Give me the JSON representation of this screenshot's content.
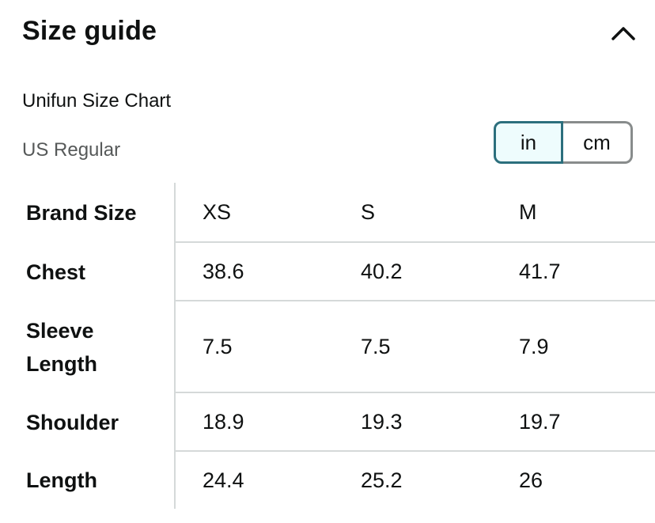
{
  "header": {
    "title": "Size guide"
  },
  "chart": {
    "name": "Unifun Size Chart",
    "fit": "US Regular"
  },
  "units": {
    "options": [
      "in",
      "cm"
    ],
    "selected": "in"
  },
  "table": {
    "header_label": "Brand Size",
    "columns": [
      "XS",
      "S",
      "M"
    ],
    "rows": [
      {
        "label": "Chest",
        "values": [
          "38.6",
          "40.2",
          "41.7"
        ]
      },
      {
        "label": "Sleeve Length",
        "values": [
          "7.5",
          "7.5",
          "7.9"
        ]
      },
      {
        "label": "Shoulder",
        "values": [
          "18.9",
          "19.3",
          "19.7"
        ]
      },
      {
        "label": "Length",
        "values": [
          "24.4",
          "25.2",
          "26"
        ]
      }
    ]
  },
  "icons": {
    "collapse": "chevron-up-icon"
  },
  "colors": {
    "selected_border": "#2c6f7d",
    "selected_fill": "#eefcfd",
    "divider": "#d5d9d9",
    "muted_text": "#565959"
  }
}
